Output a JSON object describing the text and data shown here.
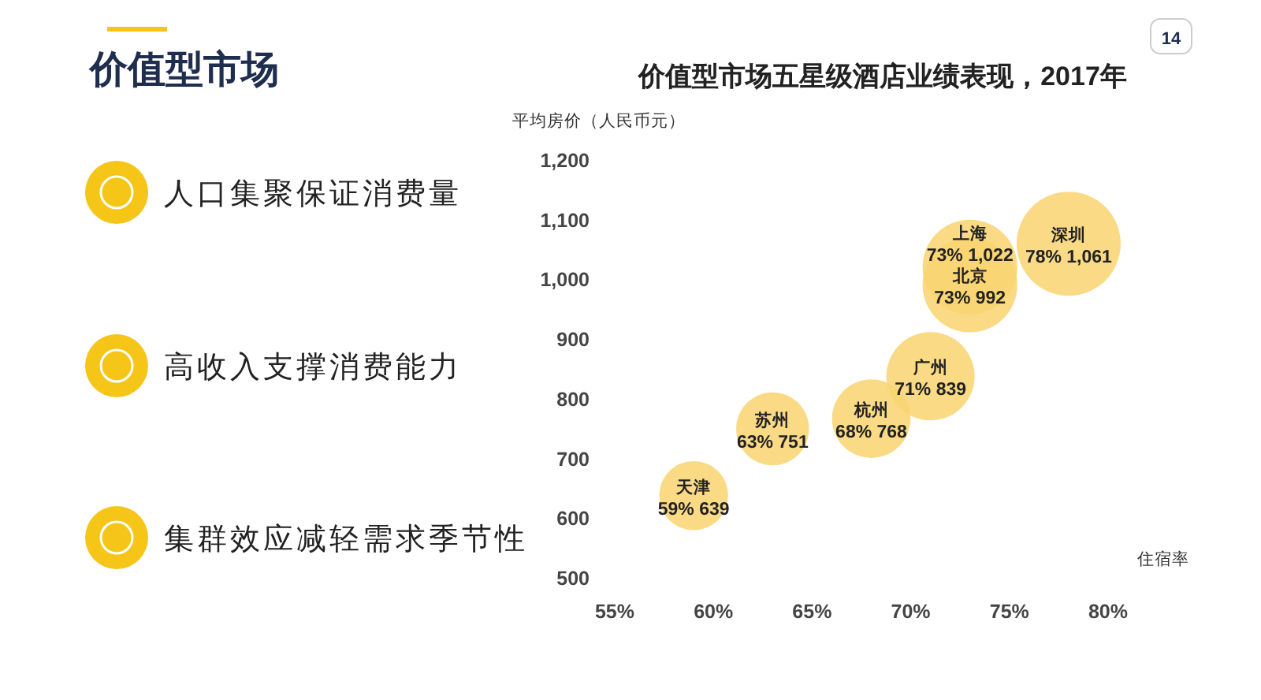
{
  "chart_data": [
    {
      "type": "other",
      "title": "价值型市场",
      "annotations": [
        "人口集聚保证消费量",
        "高收入支撑消费能力",
        "集群效应减轻需求季节性",
        "14"
      ]
    },
    {
      "type": "bubble",
      "title": "价值型市场五星级酒店业绩表现，2017年",
      "xlabel": "住宿率",
      "ylabel": "平均房价（人民币元）",
      "xlim": [
        55,
        80
      ],
      "xticks": [
        {
          "value": 55,
          "label": "55%"
        },
        {
          "value": 60,
          "label": "60%"
        },
        {
          "value": 65,
          "label": "65%"
        },
        {
          "value": 70,
          "label": "70%"
        },
        {
          "value": 75,
          "label": "75%"
        },
        {
          "value": 80,
          "label": "80%"
        }
      ],
      "ylim": [
        500,
        1200
      ],
      "yticks": [
        500,
        600,
        700,
        800,
        900,
        {
          "value": 1000,
          "label": "1,000"
        },
        {
          "value": 1100,
          "label": "1,100"
        },
        {
          "value": 1200,
          "label": "1,200"
        }
      ],
      "series": [
        {
          "name": "天津",
          "color": "#f9d370",
          "x": [
            59
          ],
          "values": [
            639
          ],
          "sizes": [
            0.44
          ],
          "value_labels": [
            "59% 639"
          ]
        },
        {
          "name": "苏州",
          "color": "#f9d370",
          "x": [
            63
          ],
          "values": [
            751
          ],
          "sizes": [
            0.49
          ],
          "value_labels": [
            "63% 751"
          ]
        },
        {
          "name": "杭州",
          "color": "#f9d370",
          "x": [
            68
          ],
          "values": [
            768
          ],
          "sizes": [
            0.57
          ],
          "value_labels": [
            "68% 768"
          ]
        },
        {
          "name": "广州",
          "color": "#f9d370",
          "x": [
            71
          ],
          "values": [
            839
          ],
          "sizes": [
            0.72
          ],
          "value_labels": [
            "71% 839"
          ]
        },
        {
          "name": "北京",
          "color": "#f9d370",
          "x": [
            73
          ],
          "values": [
            992
          ],
          "sizes": [
            0.83
          ],
          "value_labels": [
            "73% 992"
          ]
        },
        {
          "name": "上海",
          "color": "#f9d370",
          "x": [
            73
          ],
          "values": [
            1022
          ],
          "sizes": [
            0.83
          ],
          "value_labels": [
            "73% 1,022"
          ]
        },
        {
          "name": "深圳",
          "color": "#f9d370",
          "x": [
            78
          ],
          "values": [
            1061
          ],
          "sizes": [
            1
          ],
          "value_labels": [
            "78% 1,061"
          ]
        }
      ]
    }
  ]
}
